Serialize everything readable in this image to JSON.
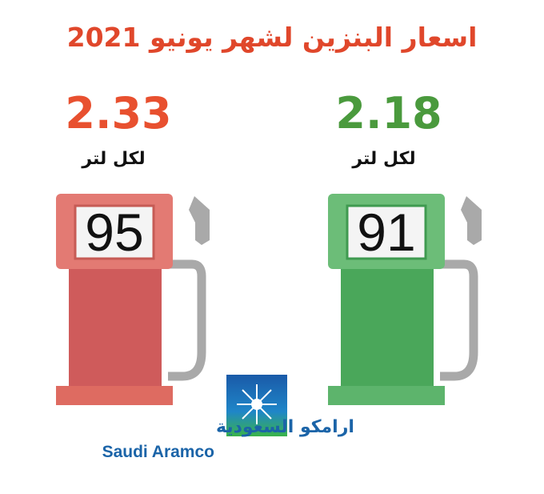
{
  "title": "اسعار البنزين لشهر يونيو 2021",
  "pumps": [
    {
      "price": "2.33",
      "unit": "لكل لتر",
      "grade": "95"
    },
    {
      "price": "2.18",
      "unit": "لكل لتر",
      "grade": "91"
    }
  ],
  "logo": {
    "arabic": "ارامكو السعودية",
    "english": "Saudi Aramco"
  }
}
